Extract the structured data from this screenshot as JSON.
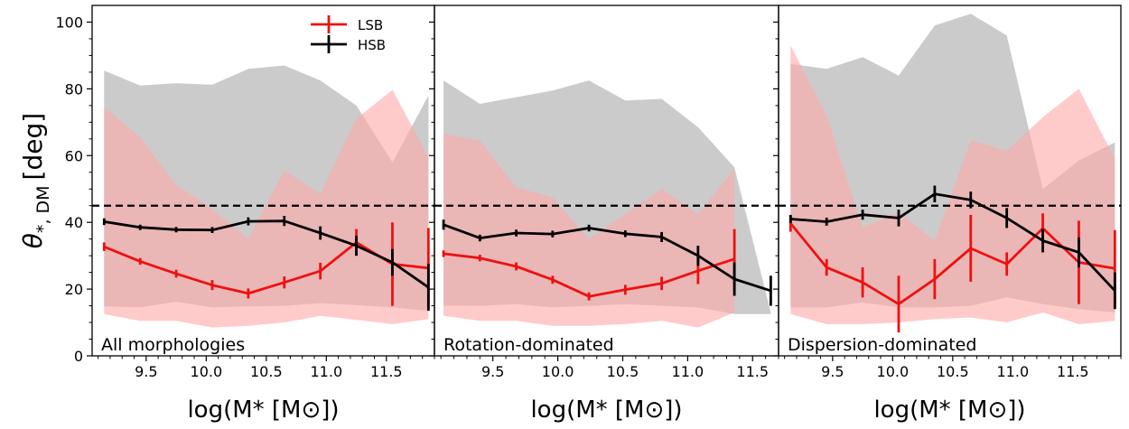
{
  "chart_data": {
    "type": "line",
    "ylabel": "θ*, DM [deg]",
    "ylabel_main": "θ",
    "ylabel_sub": "*, DM",
    "ylabel_unit": "[deg]",
    "xlabel": "log(M* [M⊙])",
    "ylim": [
      0,
      105
    ],
    "yticks": [
      0,
      20,
      40,
      60,
      80,
      100
    ],
    "reference_line": {
      "y": 45,
      "style": "dashed",
      "color": "#000000"
    },
    "legend": {
      "placement": "top",
      "entries": [
        {
          "label": "LSB",
          "color": "#ee1111"
        },
        {
          "label": "HSB",
          "color": "#000000"
        }
      ]
    },
    "colors": {
      "lsb": "#ee1111",
      "hsb": "#000000",
      "lsb_band": "#ffaaaa",
      "hsb_band": "#a8a8a8"
    },
    "panels": [
      {
        "panel_label": "All morphologies",
        "xlim": [
          9.05,
          11.9
        ],
        "xticks": [
          "9.5",
          "10.0",
          "10.5",
          "11.0",
          "11.5"
        ],
        "series": [
          {
            "name": "HSB",
            "x": [
              9.15,
              9.45,
              9.75,
              10.05,
              10.35,
              10.65,
              10.95,
              11.25,
              11.55,
              11.85
            ],
            "y": [
              40.2,
              38.5,
              37.8,
              37.7,
              40.3,
              40.4,
              36.8,
              33.0,
              28.0,
              20.5
            ],
            "yerr": [
              1.0,
              0.8,
              0.8,
              0.9,
              1.2,
              1.5,
              2.0,
              3.0,
              4.0,
              7.0
            ],
            "band_low": [
              14.8,
              14.5,
              16.2,
              14.5,
              14.8,
              15.0,
              15.8,
              15.2,
              14.5,
              13.5
            ],
            "band_high": [
              85.5,
              81.0,
              81.7,
              81.2,
              86.0,
              87.0,
              82.5,
              75.0,
              58.0,
              78.0
            ]
          },
          {
            "name": "LSB",
            "x": [
              9.15,
              9.45,
              9.75,
              10.05,
              10.35,
              10.65,
              10.95,
              11.25,
              11.55,
              11.85
            ],
            "y": [
              32.7,
              28.3,
              24.6,
              21.2,
              18.7,
              22.0,
              25.4,
              34.0,
              27.5,
              26.3
            ],
            "yerr": [
              1.3,
              1.0,
              1.2,
              1.5,
              1.5,
              1.8,
              2.5,
              4.0,
              12.5,
              12.0
            ],
            "band_low": [
              12.5,
              10.5,
              10.5,
              8.5,
              9.0,
              10.0,
              12.0,
              10.8,
              9.5,
              11.0
            ],
            "band_high": [
              74.5,
              65.5,
              51.2,
              44.0,
              35.0,
              55.5,
              48.5,
              71.0,
              79.7,
              59.5
            ]
          }
        ]
      },
      {
        "panel_label": "Rotation-dominated",
        "xlim": [
          9.05,
          11.7
        ],
        "xticks": [
          "9.5",
          "10.0",
          "10.5",
          "11.0",
          "11.5"
        ],
        "series": [
          {
            "name": "HSB",
            "x": [
              9.12,
              9.4,
              9.68,
              9.96,
              10.24,
              10.52,
              10.8,
              11.08,
              11.36,
              11.64
            ],
            "y": [
              39.3,
              35.3,
              36.8,
              36.5,
              38.3,
              36.6,
              35.6,
              30.0,
              23.0,
              19.5
            ],
            "yerr": [
              1.5,
              1.0,
              1.0,
              1.0,
              1.0,
              1.0,
              1.5,
              3.0,
              5.0,
              4.5
            ],
            "band_low": [
              15.0,
              15.0,
              15.5,
              14.5,
              15.0,
              15.5,
              15.0,
              14.5,
              12.5,
              12.5
            ],
            "band_high": [
              82.5,
              75.5,
              77.5,
              79.5,
              82.5,
              76.5,
              77.0,
              68.5,
              56.5,
              13.0
            ]
          },
          {
            "name": "LSB",
            "x": [
              9.12,
              9.4,
              9.68,
              9.96,
              10.24,
              10.52,
              10.8,
              11.08,
              11.36
            ],
            "y": [
              30.6,
              29.3,
              26.8,
              22.8,
              17.8,
              19.8,
              21.7,
              25.5,
              29.0
            ],
            "yerr": [
              1.0,
              1.0,
              1.2,
              1.2,
              1.2,
              1.5,
              2.0,
              4.0,
              9.0
            ],
            "band_low": [
              12.0,
              10.5,
              10.5,
              9.0,
              9.0,
              9.5,
              10.5,
              8.5,
              13.0
            ],
            "band_high": [
              66.5,
              64.5,
              50.5,
              47.5,
              35.0,
              42.5,
              50.0,
              42.5,
              56.0
            ]
          }
        ]
      },
      {
        "panel_label": "Dispersion-dominated",
        "xlim": [
          9.05,
          11.9
        ],
        "xticks": [
          "9.5",
          "10.0",
          "10.5",
          "11.0",
          "11.5"
        ],
        "series": [
          {
            "name": "HSB",
            "x": [
              9.15,
              9.45,
              9.75,
              10.05,
              10.35,
              10.65,
              10.95,
              11.25,
              11.55,
              11.85
            ],
            "y": [
              41.0,
              40.2,
              42.3,
              41.3,
              48.5,
              46.7,
              41.3,
              34.5,
              31.0,
              19.5
            ],
            "yerr": [
              1.2,
              1.2,
              1.5,
              2.5,
              2.5,
              2.5,
              3.0,
              3.5,
              4.5,
              5.5
            ],
            "band_low": [
              14.5,
              14.5,
              16.0,
              14.5,
              14.5,
              15.0,
              17.5,
              15.5,
              14.0,
              13.0
            ],
            "band_high": [
              87.5,
              86.0,
              89.5,
              84.0,
              99.0,
              102.5,
              96.0,
              50.0,
              58.5,
              64.0
            ]
          },
          {
            "name": "LSB",
            "x": [
              9.15,
              9.45,
              9.75,
              10.05,
              10.35,
              10.65,
              10.95,
              11.25,
              11.55,
              11.85
            ],
            "y": [
              39.7,
              26.5,
              22.0,
              15.5,
              23.0,
              32.2,
              27.5,
              38.2,
              28.0,
              26.2
            ],
            "yerr": [
              2.5,
              2.5,
              4.5,
              8.5,
              6.0,
              10.0,
              3.5,
              4.5,
              12.5,
              11.5
            ],
            "band_low": [
              12.5,
              9.5,
              9.5,
              10.0,
              11.0,
              11.5,
              10.0,
              13.0,
              9.5,
              10.5
            ],
            "band_high": [
              93.0,
              72.0,
              38.5,
              43.0,
              34.5,
              64.5,
              61.5,
              71.5,
              80.0,
              59.0
            ]
          }
        ]
      }
    ]
  }
}
